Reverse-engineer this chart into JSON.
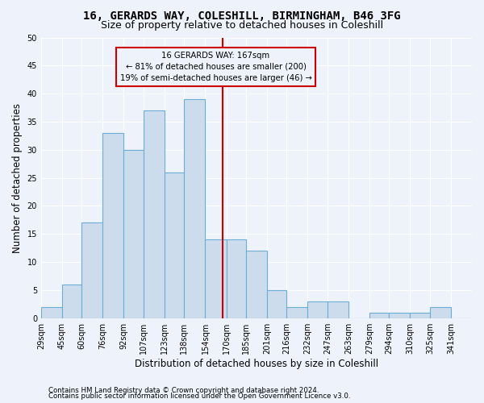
{
  "title1": "16, GERARDS WAY, COLESHILL, BIRMINGHAM, B46 3FG",
  "title2": "Size of property relative to detached houses in Coleshill",
  "xlabel": "Distribution of detached houses by size in Coleshill",
  "ylabel": "Number of detached properties",
  "bin_labels": [
    "29sqm",
    "45sqm",
    "60sqm",
    "76sqm",
    "92sqm",
    "107sqm",
    "123sqm",
    "138sqm",
    "154sqm",
    "170sqm",
    "185sqm",
    "201sqm",
    "216sqm",
    "232sqm",
    "247sqm",
    "263sqm",
    "279sqm",
    "294sqm",
    "310sqm",
    "325sqm",
    "341sqm"
  ],
  "bin_edges": [
    29,
    45,
    60,
    76,
    92,
    107,
    123,
    138,
    154,
    170,
    185,
    201,
    216,
    232,
    247,
    263,
    279,
    294,
    310,
    325,
    341,
    357
  ],
  "counts": [
    2,
    6,
    17,
    33,
    30,
    37,
    26,
    39,
    14,
    14,
    12,
    5,
    2,
    3,
    3,
    0,
    1,
    1,
    1,
    2,
    0
  ],
  "property_value": 167,
  "bar_color": "#cddcec",
  "bar_edge_color": "#6aaed6",
  "vline_color": "#cc0000",
  "annotation_text": "16 GERARDS WAY: 167sqm\n← 81% of detached houses are smaller (200)\n19% of semi-detached houses are larger (46) →",
  "footnote1": "Contains HM Land Registry data © Crown copyright and database right 2024.",
  "footnote2": "Contains public sector information licensed under the Open Government Licence v3.0.",
  "ylim": [
    0,
    50
  ],
  "background_color": "#eef2fa",
  "grid_color": "#ffffff",
  "title_fontsize": 10,
  "subtitle_fontsize": 9,
  "tick_fontsize": 7,
  "ylabel_fontsize": 8.5,
  "xlabel_fontsize": 8.5,
  "footnote_fontsize": 6.2
}
